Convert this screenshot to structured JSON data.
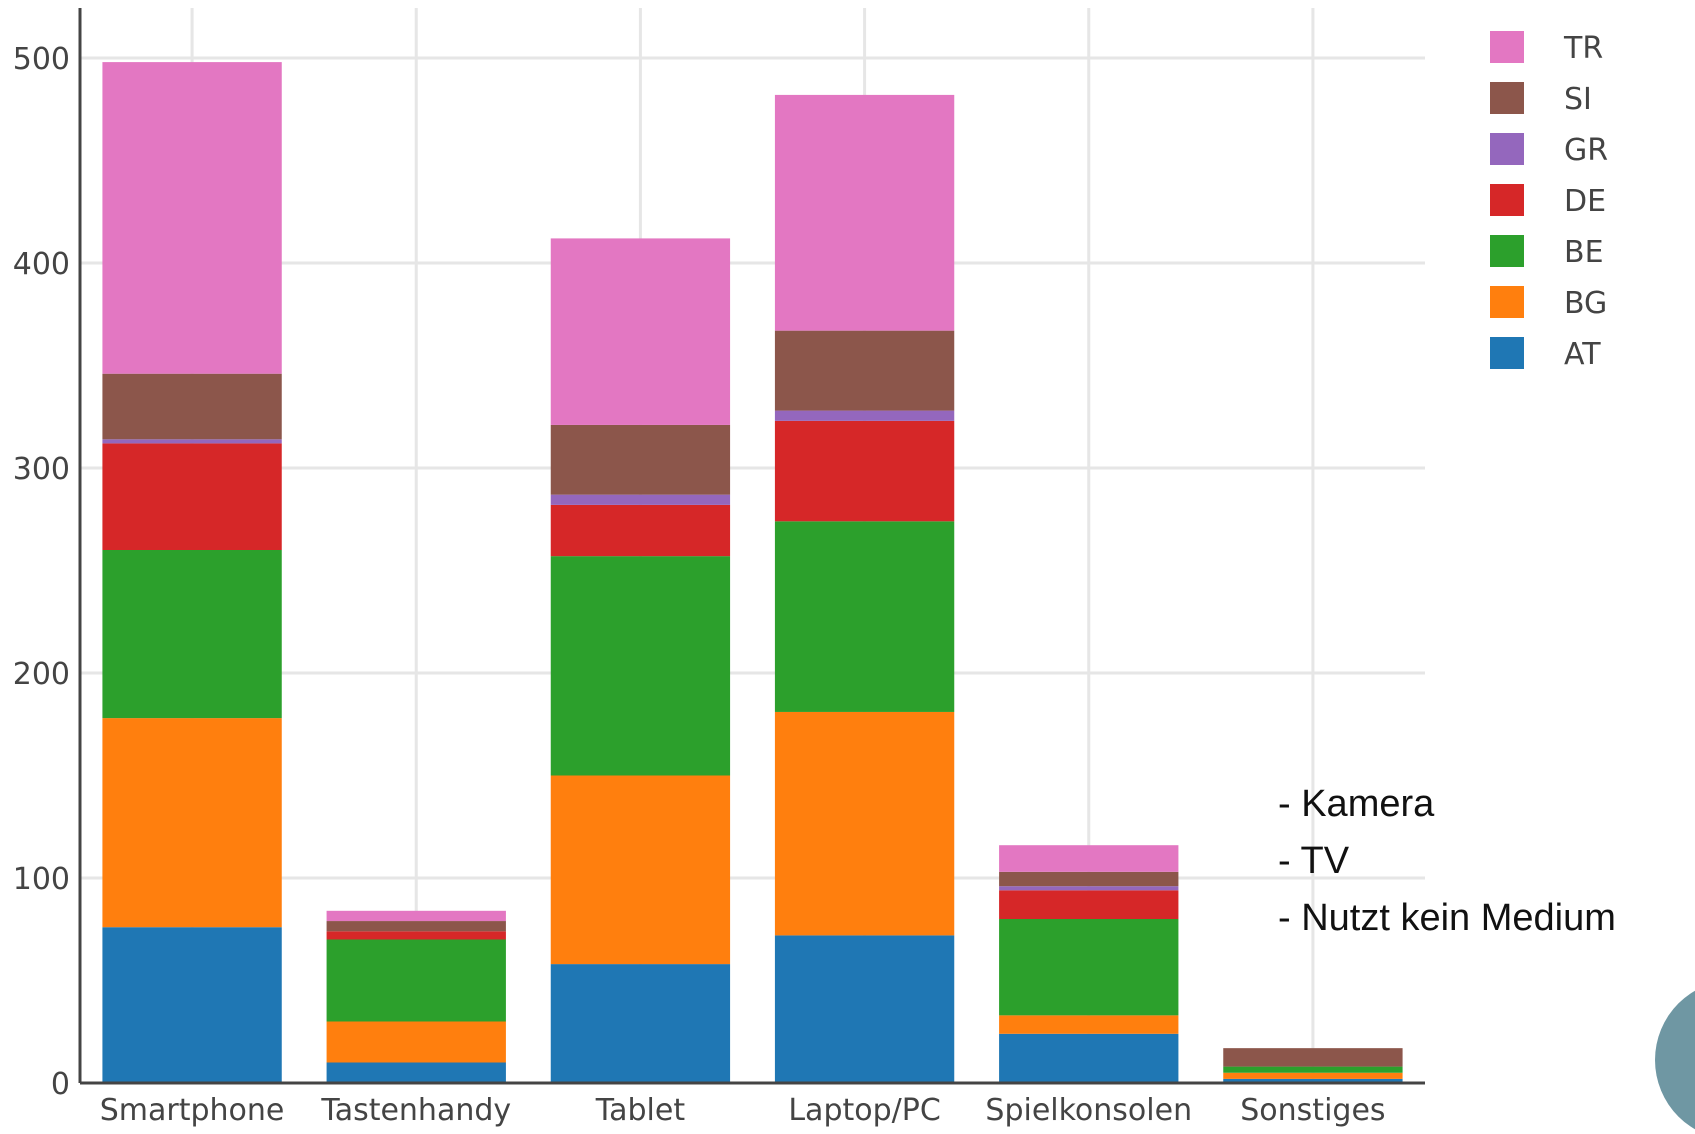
{
  "chart_data": {
    "type": "bar",
    "stacked": true,
    "categories": [
      "Smartphone",
      "Tastenhandy",
      "Tablet",
      "Laptop/PC",
      "Spielkonsolen",
      "Sonstiges"
    ],
    "series": [
      {
        "name": "AT",
        "color": "#1f77b4",
        "values": [
          76,
          10,
          58,
          72,
          24,
          2
        ]
      },
      {
        "name": "BG",
        "color": "#ff7f0e",
        "values": [
          102,
          20,
          92,
          109,
          9,
          3
        ]
      },
      {
        "name": "BE",
        "color": "#2ca02c",
        "values": [
          82,
          40,
          107,
          93,
          47,
          3
        ]
      },
      {
        "name": "DE",
        "color": "#d62728",
        "values": [
          52,
          4,
          25,
          49,
          14,
          0
        ]
      },
      {
        "name": "GR",
        "color": "#9467bd",
        "values": [
          2,
          0,
          5,
          5,
          2,
          0
        ]
      },
      {
        "name": "SI",
        "color": "#8c564b",
        "values": [
          32,
          5,
          34,
          39,
          7,
          9
        ]
      },
      {
        "name": "TR",
        "color": "#e377c2",
        "values": [
          152,
          5,
          91,
          115,
          13,
          0
        ]
      }
    ],
    "yticks": [
      0,
      100,
      200,
      300,
      400,
      500
    ],
    "ylim": [
      0,
      525
    ],
    "grid": true,
    "legend_position": "top-right",
    "legend_order": [
      "TR",
      "SI",
      "GR",
      "DE",
      "BE",
      "BG",
      "AT"
    ]
  },
  "note": {
    "lines": [
      "-  Kamera",
      "- TV",
      "- Nutzt kein Medium"
    ]
  }
}
